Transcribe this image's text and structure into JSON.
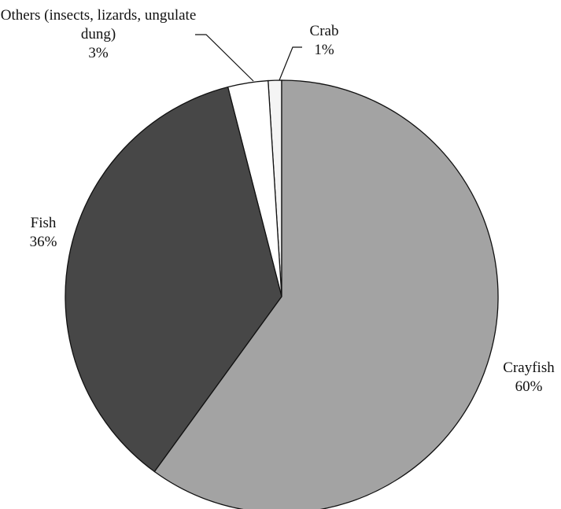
{
  "chart_data": {
    "type": "pie",
    "categories": [
      "Crayfish",
      "Fish",
      "Others (insects, lizards, ungulate dung)",
      "Crab"
    ],
    "values": [
      60,
      36,
      3,
      1
    ],
    "value_labels": [
      "60%",
      "36%",
      "3%",
      "1%"
    ],
    "colors": [
      "#a3a3a3",
      "#474747",
      "#ffffff",
      "#f4f4f4"
    ]
  }
}
